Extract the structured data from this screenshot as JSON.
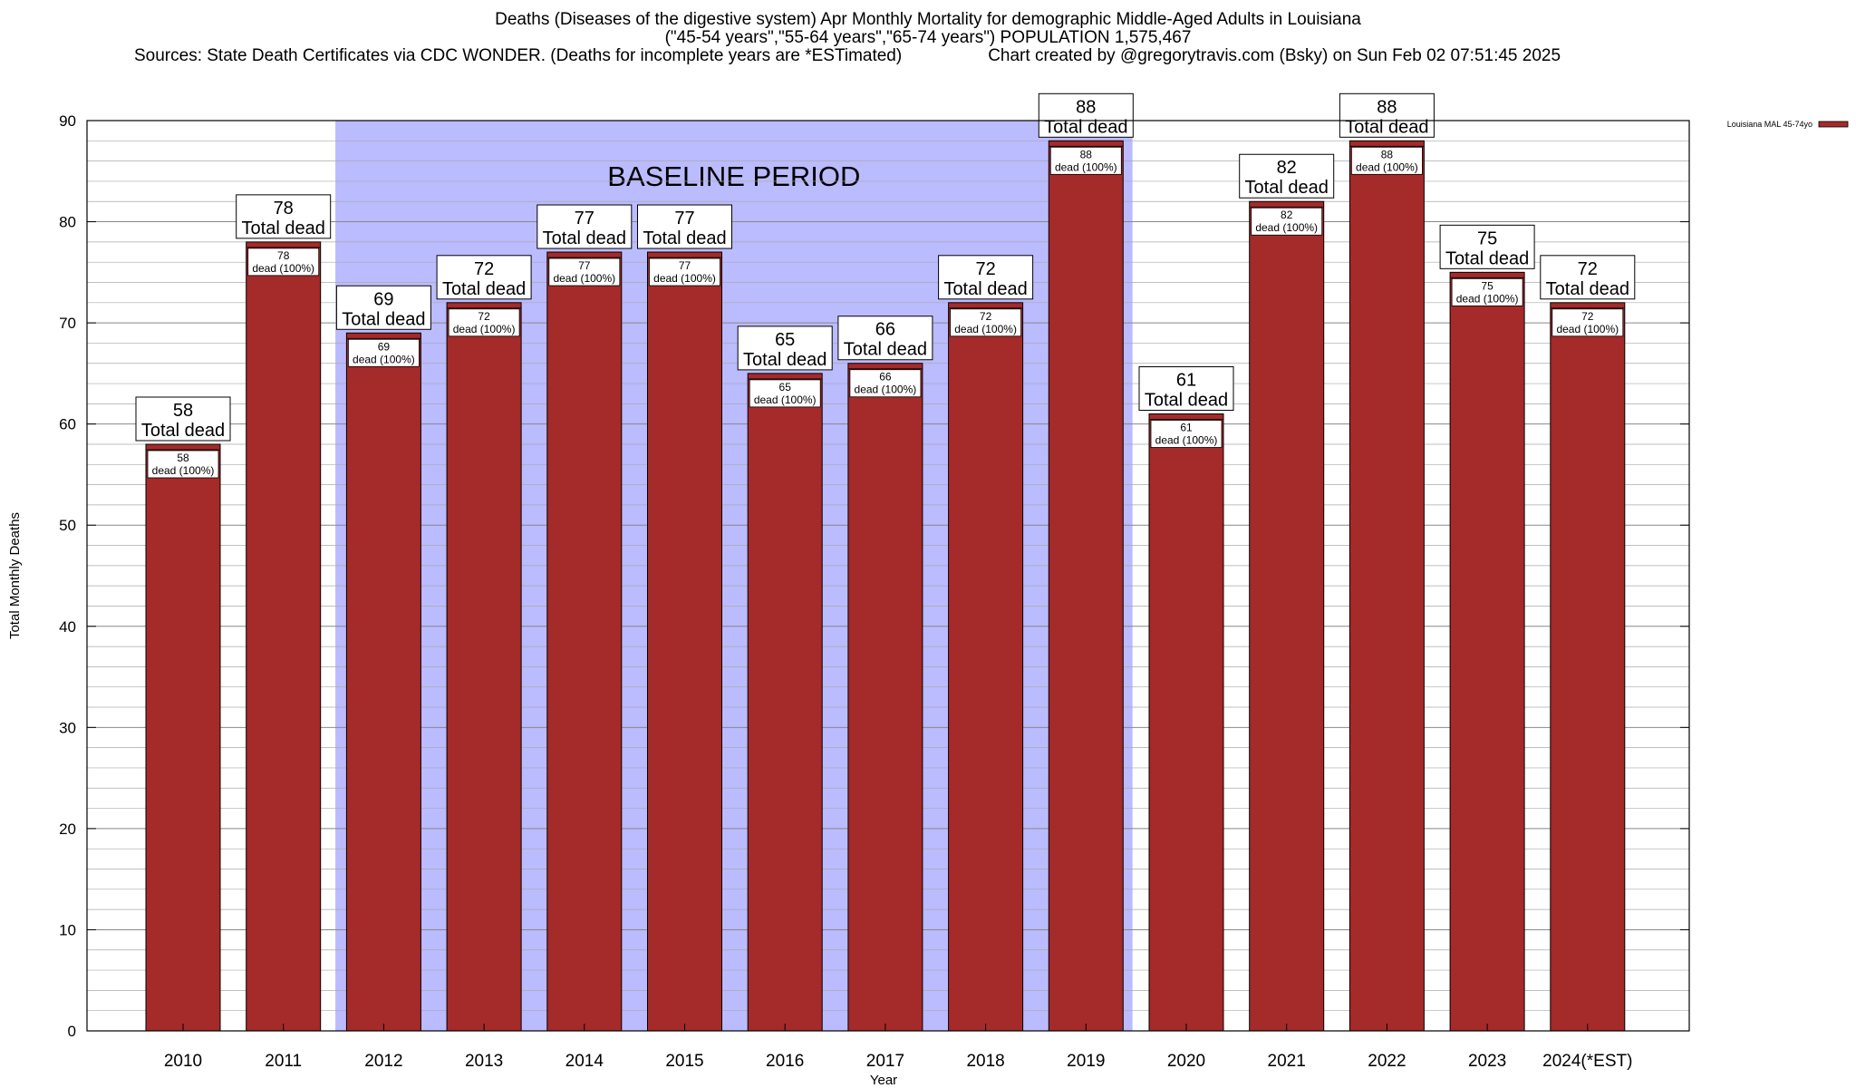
{
  "chart_data": {
    "type": "bar",
    "title": "Deaths (Diseases of the digestive system) Apr Monthly Mortality for demographic Middle-Aged Adults in Louisiana",
    "subtitle": "(\"45-54 years\",\"55-64 years\",\"65-74 years\") POPULATION 1,575,467",
    "sources": "Sources: State Death Certificates via CDC WONDER. (Deaths for incomplete years are *ESTimated)",
    "credit": "Chart created by @gregorytravis.com (Bsky) on Sun Feb 02 07:51:45 2025",
    "xlabel": "Year",
    "ylabel": "Total Monthly Deaths",
    "ylim": [
      0,
      90
    ],
    "yticks": [
      0,
      10,
      20,
      30,
      40,
      50,
      60,
      70,
      80,
      90
    ],
    "categories": [
      "2010",
      "2011",
      "2012",
      "2013",
      "2014",
      "2015",
      "2016",
      "2017",
      "2018",
      "2019",
      "2020",
      "2021",
      "2022",
      "2023",
      "2024(*EST)"
    ],
    "series": [
      {
        "name": "Louisiana MAL 45-74yo",
        "color": "#a52a2a",
        "values": [
          58,
          78,
          69,
          72,
          77,
          77,
          65,
          66,
          72,
          88,
          61,
          82,
          88,
          75,
          72
        ]
      }
    ],
    "top_label_suffix": "Total dead",
    "inner_label_suffix": "dead (100%)",
    "baseline": {
      "label": "BASELINE PERIOD",
      "start": "2012",
      "end": "2019",
      "color": "#bbbbff"
    },
    "legend_position": "top-right",
    "grid": true
  }
}
